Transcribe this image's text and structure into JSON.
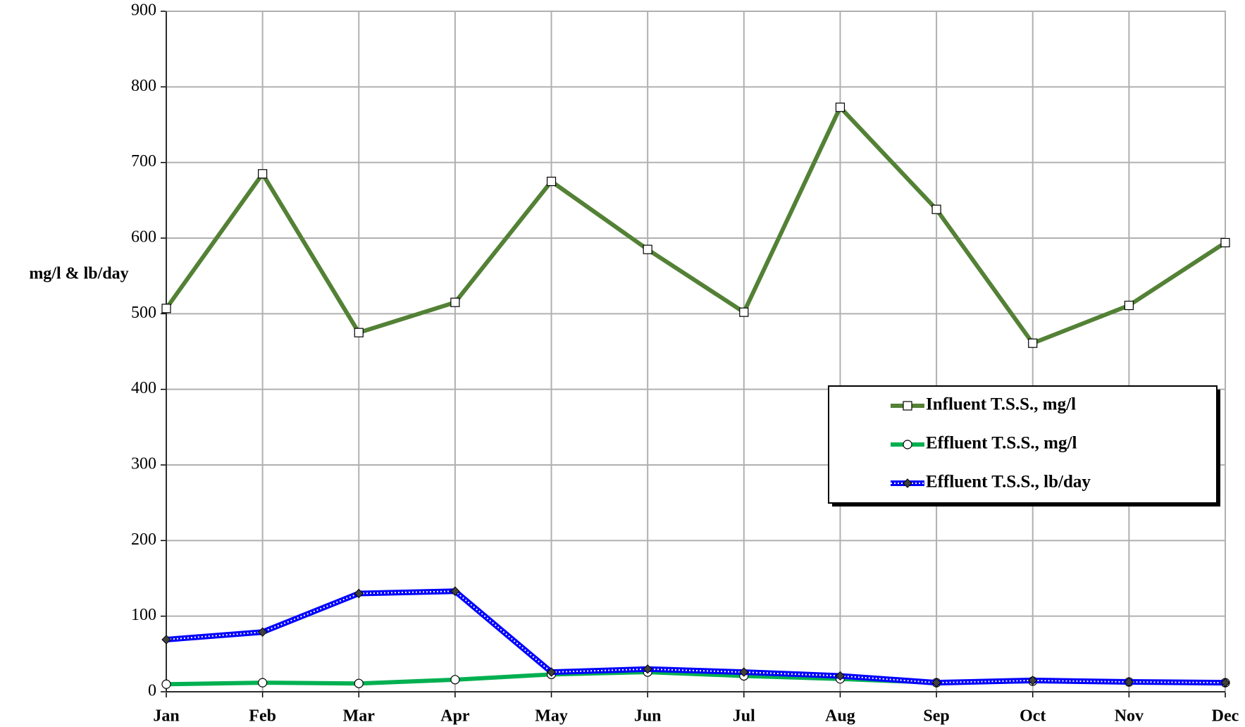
{
  "chart_data": {
    "type": "line",
    "y_label": "mg/l & lb/day",
    "categories": [
      "Jan",
      "Feb",
      "Mar",
      "Apr",
      "May",
      "Jun",
      "Jul",
      "Aug",
      "Sep",
      "Oct",
      "Nov",
      "Dec"
    ],
    "ylim": [
      0,
      900
    ],
    "yticks": [
      0,
      100,
      200,
      300,
      400,
      500,
      600,
      700,
      800,
      900
    ],
    "grid": true,
    "legend": "right",
    "series": [
      {
        "name": "Influent T.S.S., mg/l",
        "color": "#538135",
        "marker": "square",
        "values": [
          507,
          685,
          475,
          515,
          675,
          585,
          502,
          773,
          638,
          461,
          511,
          594
        ]
      },
      {
        "name": "Effluent T.S.S., mg/l",
        "color": "#00b050",
        "marker": "circle",
        "values": [
          10,
          12,
          11,
          16,
          23,
          26,
          21,
          17,
          12,
          14,
          13,
          12
        ]
      },
      {
        "name": "Effluent T.S.S., lb/day",
        "color": "#0000ff",
        "marker": "diamond",
        "values": [
          69,
          79,
          130,
          133,
          26,
          30,
          26,
          21,
          12,
          15,
          13,
          12
        ]
      }
    ]
  }
}
